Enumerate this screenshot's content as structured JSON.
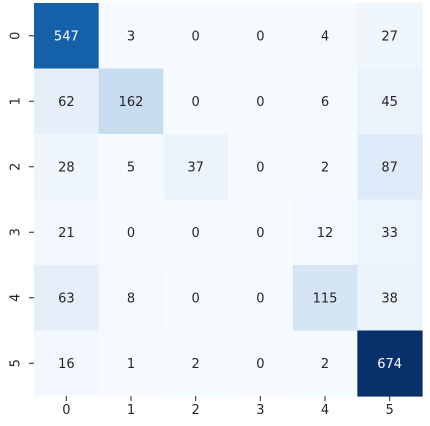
{
  "chart_data": {
    "type": "heatmap",
    "title": "",
    "xlabel": "",
    "ylabel": "",
    "x_tick_labels": [
      "0",
      "1",
      "2",
      "3",
      "4",
      "5"
    ],
    "y_tick_labels": [
      "0",
      "1",
      "2",
      "3",
      "4",
      "5"
    ],
    "matrix": [
      [
        547,
        3,
        0,
        0,
        4,
        27
      ],
      [
        62,
        162,
        0,
        0,
        6,
        45
      ],
      [
        28,
        5,
        37,
        0,
        2,
        87
      ],
      [
        21,
        0,
        0,
        0,
        12,
        33
      ],
      [
        63,
        8,
        0,
        0,
        115,
        38
      ],
      [
        16,
        1,
        2,
        0,
        2,
        674
      ]
    ],
    "colormap": "Blues",
    "value_range": [
      0,
      674
    ],
    "colorbar": false,
    "grid": false,
    "colors": {
      "low": "#f7fbff",
      "high": "#08306b",
      "text_dark": "#262626",
      "text_light": "#ffffff"
    }
  }
}
